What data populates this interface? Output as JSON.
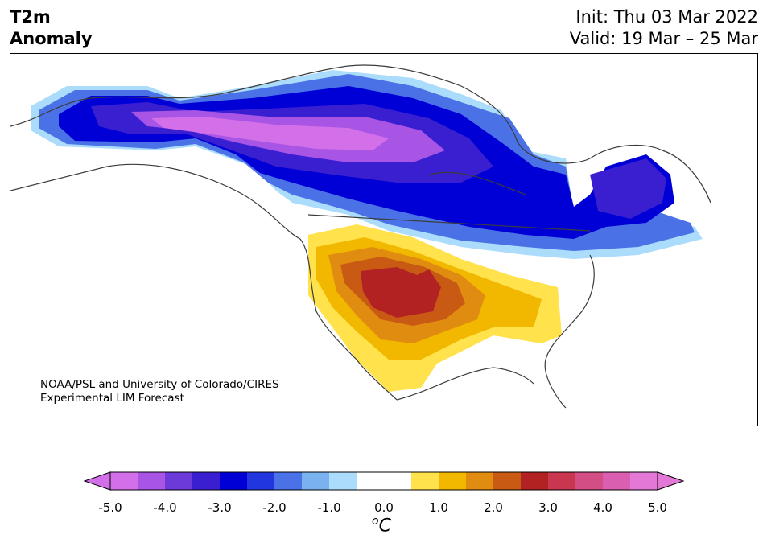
{
  "header": {
    "title_line1": "T2m",
    "title_line2": "Anomaly",
    "init": "Init: Thu 03 Mar 2022",
    "valid": "Valid: 19 Mar – 25 Mar"
  },
  "credit": {
    "line1": "NOAA/PSL and University of Colorado/CIRES",
    "line2": "Experimental LIM Forecast"
  },
  "colorbar": {
    "ticks": [
      "-5.0",
      "-4.0",
      "-3.0",
      "-2.0",
      "-1.0",
      "0.0",
      "1.0",
      "2.0",
      "3.0",
      "4.0",
      "5.0"
    ],
    "units_symbol": "o",
    "units_letter": "C",
    "colors": [
      "#d36fe8",
      "#a855e6",
      "#6b3ad9",
      "#3a1fd1",
      "#0000d6",
      "#2236e0",
      "#4a72e6",
      "#79b2ef",
      "#abdcfb",
      "#ffffff",
      "#ffffff",
      "#ffe24c",
      "#f2b800",
      "#e08c10",
      "#c85a14",
      "#b22222",
      "#c83650",
      "#d24e84",
      "#da5fb0",
      "#e378d6"
    ],
    "over_color": "#e378d6",
    "under_color": "#d36fe8"
  }
}
